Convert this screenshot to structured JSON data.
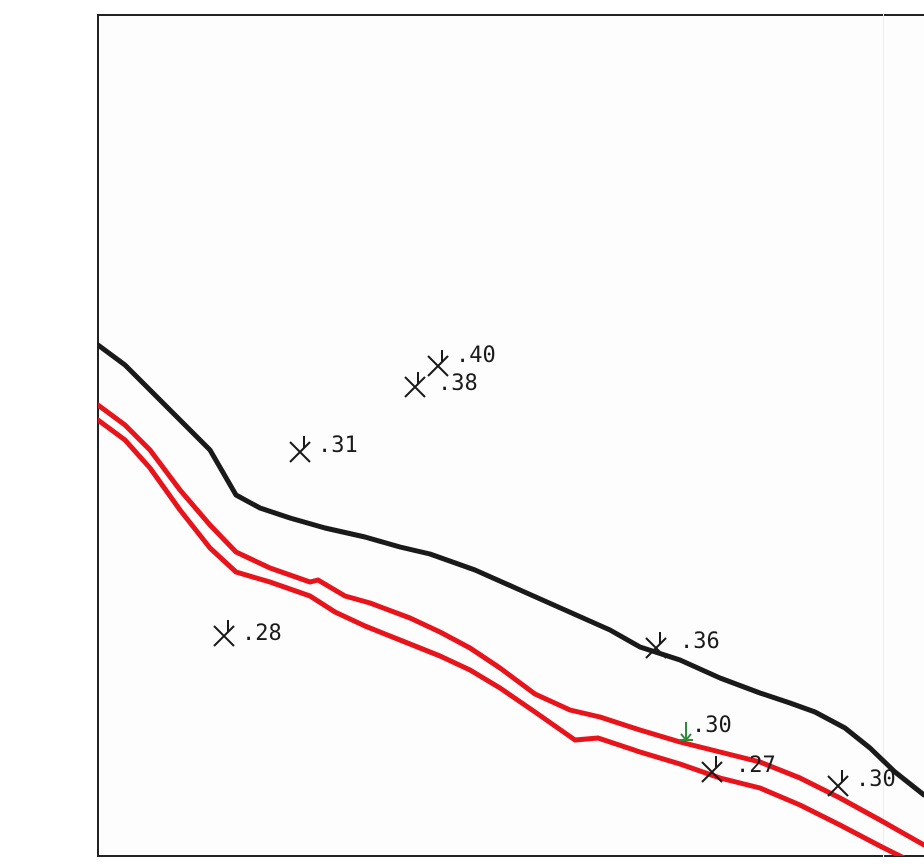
{
  "map": {
    "colors": {
      "frame": "#222222",
      "contour": "#1a1a1a",
      "red_lines": "#e8141c",
      "spot_marker": "#1a1a1a",
      "benchmark_marker": "#2e8b3a",
      "label": "#1a1a1a"
    },
    "lines": [
      {
        "id": "black-contour-line",
        "kind": "contour"
      },
      {
        "id": "red-line-upper",
        "kind": "red"
      },
      {
        "id": "red-line-lower",
        "kind": "red"
      }
    ],
    "spot_heights": [
      {
        "id": "spot-40",
        "label": ".40",
        "marker": "cross-tick"
      },
      {
        "id": "spot-38",
        "label": ".38",
        "marker": "cross-tick"
      },
      {
        "id": "spot-31",
        "label": ".31",
        "marker": "cross-tick"
      },
      {
        "id": "spot-28",
        "label": ".28",
        "marker": "cross-tick"
      },
      {
        "id": "spot-36",
        "label": ".36",
        "marker": "cross-tick"
      },
      {
        "id": "spot-30-benchmark",
        "label": ".30",
        "marker": "benchmark-arrow"
      },
      {
        "id": "spot-27",
        "label": ".27",
        "marker": "cross-tick"
      },
      {
        "id": "spot-30-edge",
        "label": ".30",
        "marker": "cross-tick"
      }
    ]
  }
}
